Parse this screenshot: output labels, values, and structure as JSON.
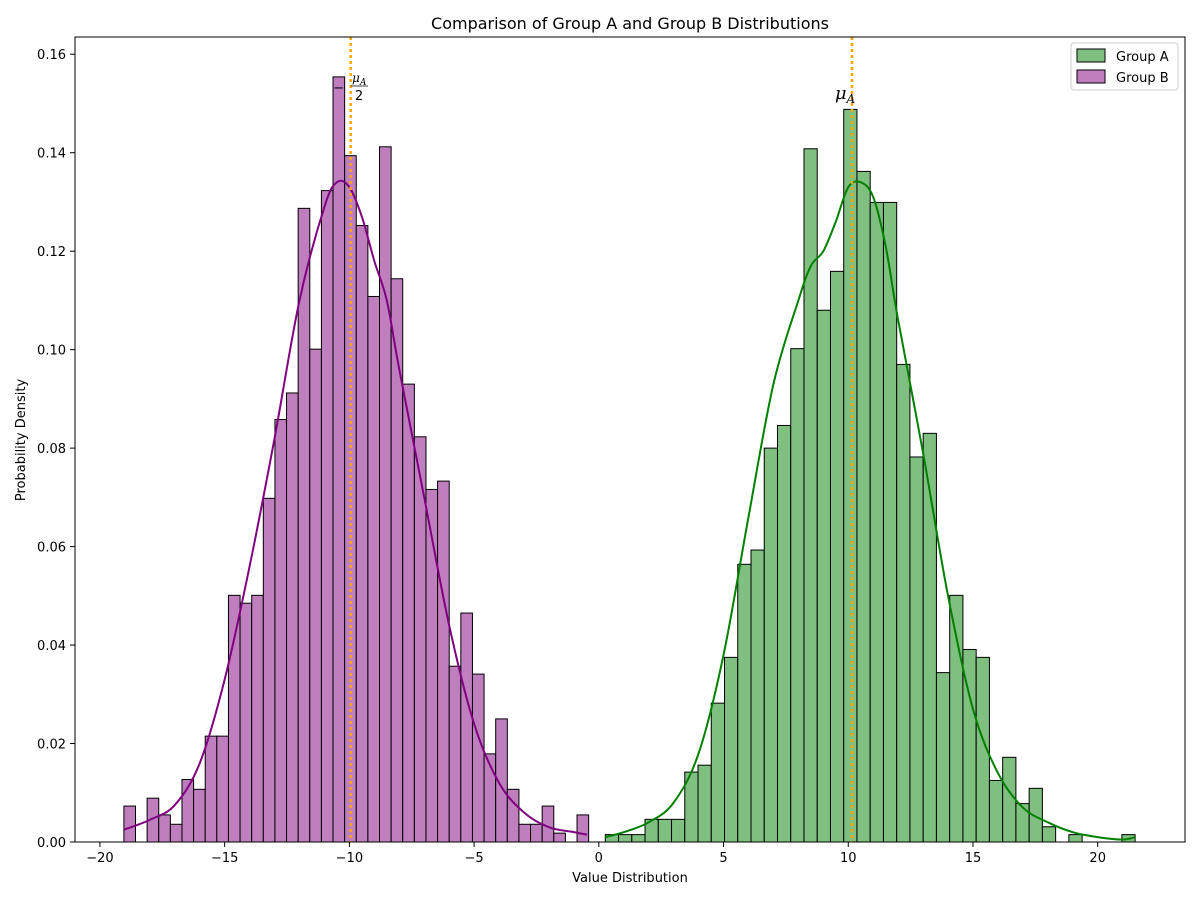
{
  "chart_data": {
    "type": "histogram",
    "title": "Comparison of Group A and Group B Distributions",
    "xlabel": "Value Distribution",
    "ylabel": "Probability Density",
    "xlim": [
      -21,
      23.5
    ],
    "ylim": [
      0,
      0.1635
    ],
    "xticks": [
      -20,
      -15,
      -10,
      -5,
      0,
      5,
      10,
      15,
      20
    ],
    "xtick_labels": [
      "−20",
      "−15",
      "−10",
      "−5",
      "0",
      "5",
      "10",
      "15",
      "20"
    ],
    "yticks": [
      0,
      0.02,
      0.04,
      0.06,
      0.08,
      0.1,
      0.12,
      0.14,
      0.16
    ],
    "ytick_labels": [
      "0.00",
      "0.02",
      "0.04",
      "0.06",
      "0.08",
      "0.10",
      "0.12",
      "0.14",
      "0.16"
    ],
    "grid": false,
    "legend_position": "top-right",
    "colors": {
      "group_a_fill": "#7fbf7f",
      "group_a_line": "#008000",
      "group_b_fill": "#bf7fbf",
      "group_b_line": "#800080",
      "mean_line": "#FFA500",
      "edge": "#000000"
    },
    "series": [
      {
        "name": "Group A",
        "bin_start": 0.26,
        "bin_width": 0.531,
        "values": [
          0.0015,
          0.0015,
          0.0015,
          0.0046,
          0.0046,
          0.0046,
          0.0142,
          0.0156,
          0.0282,
          0.0375,
          0.0564,
          0.0593,
          0.08,
          0.0846,
          0.1002,
          0.1408,
          0.108,
          0.1159,
          0.1488,
          0.1362,
          0.1299,
          0.1299,
          0.097,
          0.0782,
          0.083,
          0.0344,
          0.0501,
          0.0391,
          0.0375,
          0.0125,
          0.0172,
          0.0078,
          0.0109,
          0.0031,
          0,
          0.0015,
          0,
          0,
          0,
          0.0015
        ],
        "kde": {
          "x": [
            0.26,
            1,
            2,
            3,
            4,
            5,
            6,
            7,
            8,
            8.5,
            9,
            9.5,
            10,
            10.5,
            11,
            11.5,
            12,
            13,
            14,
            15,
            16,
            17,
            18,
            19,
            20,
            21,
            21.5
          ],
          "y": [
            0.001,
            0.002,
            0.004,
            0.008,
            0.018,
            0.038,
            0.066,
            0.093,
            0.11,
            0.117,
            0.12,
            0.126,
            0.133,
            0.134,
            0.131,
            0.121,
            0.106,
            0.079,
            0.05,
            0.027,
            0.014,
            0.007,
            0.004,
            0.002,
            0.001,
            0.0005,
            0.001
          ]
        },
        "mean": 10.15,
        "mean_label": "μ",
        "mean_label_sub": "A"
      },
      {
        "name": "Group B",
        "bin_start": -19.04,
        "bin_width": 0.4658,
        "values": [
          0.0073,
          0,
          0.0089,
          0.0055,
          0.0036,
          0.0127,
          0.0107,
          0.0215,
          0.0215,
          0.0501,
          0.0485,
          0.0501,
          0.0698,
          0.0858,
          0.0912,
          0.1287,
          0.1001,
          0.1323,
          0.1554,
          0.1394,
          0.1252,
          0.1108,
          0.1412,
          0.1144,
          0.093,
          0.0823,
          0.0716,
          0.0733,
          0.0357,
          0.0465,
          0.0341,
          0.0179,
          0.025,
          0.0107,
          0.0036,
          0.0036,
          0.0073,
          0.0018,
          0,
          0.0055
        ],
        "kde": {
          "x": [
            -19.04,
            -18,
            -17,
            -16,
            -15,
            -14,
            -13,
            -12,
            -11,
            -10.5,
            -10,
            -9.5,
            -9,
            -8.5,
            -8,
            -7,
            -6,
            -5,
            -4,
            -3,
            -2,
            -1,
            -0.47
          ],
          "y": [
            0.0025,
            0.0045,
            0.0075,
            0.016,
            0.033,
            0.056,
            0.082,
            0.11,
            0.129,
            0.134,
            0.133,
            0.127,
            0.118,
            0.11,
            0.096,
            0.07,
            0.044,
            0.024,
            0.012,
            0.006,
            0.003,
            0.002,
            0.0015
          ]
        },
        "mean": -9.95,
        "mean_label_num": "μ",
        "mean_label_sub": "A",
        "mean_label_den": "2",
        "mean_label_sign": "−"
      }
    ]
  }
}
